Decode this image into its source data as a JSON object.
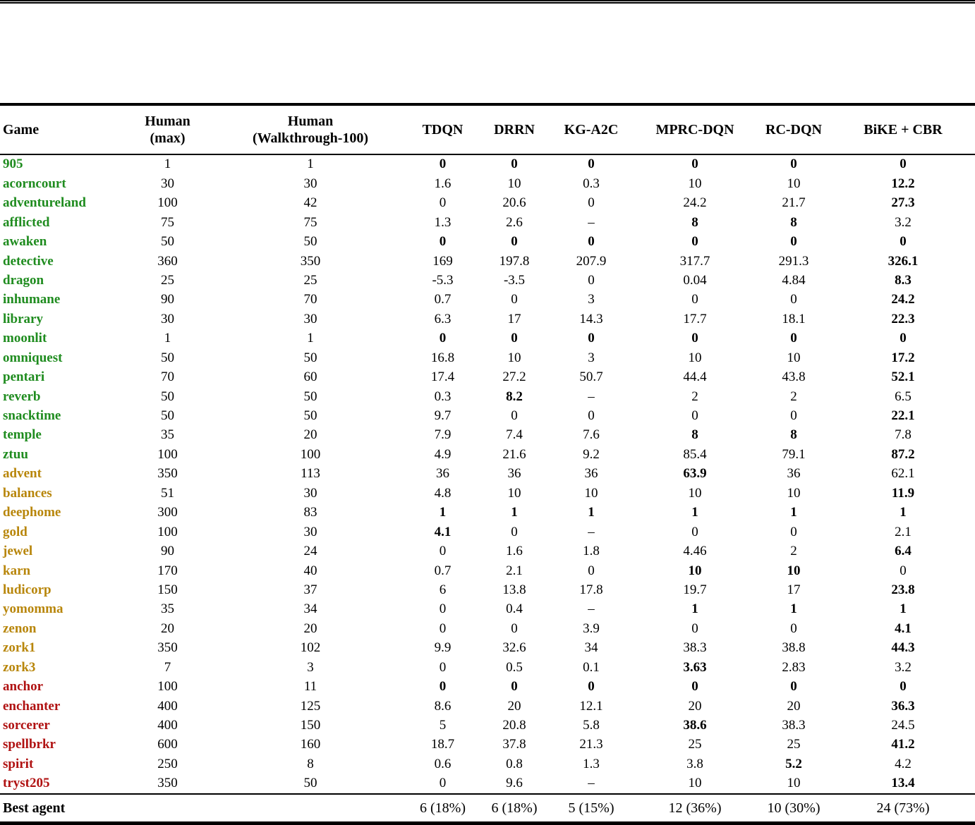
{
  "colors": {
    "group_easy": "#1f8c1f",
    "group_medium": "#b8860b",
    "group_hard": "#b01212"
  },
  "table": {
    "header": {
      "game": "Game",
      "human_max_line1": "Human",
      "human_max_line2": "(max)",
      "human_walkthrough_line1": "Human",
      "human_walkthrough_line2": "(Walkthrough-100)",
      "agents": [
        "TDQN",
        "DRRN",
        "KG-A2C",
        "MPRC-DQN",
        "RC-DQN",
        "BiKE + CBR"
      ]
    },
    "rows": [
      {
        "game": "905",
        "group": "easy",
        "values": [
          "1",
          "1",
          "0",
          "0",
          "0",
          "0",
          "0",
          "0"
        ],
        "bold": [
          false,
          false,
          true,
          true,
          true,
          true,
          true,
          true
        ]
      },
      {
        "game": "acorncourt",
        "group": "easy",
        "values": [
          "30",
          "30",
          "1.6",
          "10",
          "0.3",
          "10",
          "10",
          "12.2"
        ],
        "bold": [
          false,
          false,
          false,
          false,
          false,
          false,
          false,
          true
        ]
      },
      {
        "game": "adventureland",
        "group": "easy",
        "values": [
          "100",
          "42",
          "0",
          "20.6",
          "0",
          "24.2",
          "21.7",
          "27.3"
        ],
        "bold": [
          false,
          false,
          false,
          false,
          false,
          false,
          false,
          true
        ]
      },
      {
        "game": "afflicted",
        "group": "easy",
        "values": [
          "75",
          "75",
          "1.3",
          "2.6",
          "–",
          "8",
          "8",
          "3.2"
        ],
        "bold": [
          false,
          false,
          false,
          false,
          false,
          true,
          true,
          false
        ]
      },
      {
        "game": "awaken",
        "group": "easy",
        "values": [
          "50",
          "50",
          "0",
          "0",
          "0",
          "0",
          "0",
          "0"
        ],
        "bold": [
          false,
          false,
          true,
          true,
          true,
          true,
          true,
          true
        ]
      },
      {
        "game": "detective",
        "group": "easy",
        "values": [
          "360",
          "350",
          "169",
          "197.8",
          "207.9",
          "317.7",
          "291.3",
          "326.1"
        ],
        "bold": [
          false,
          false,
          false,
          false,
          false,
          false,
          false,
          true
        ]
      },
      {
        "game": "dragon",
        "group": "easy",
        "values": [
          "25",
          "25",
          "-5.3",
          "-3.5",
          "0",
          "0.04",
          "4.84",
          "8.3"
        ],
        "bold": [
          false,
          false,
          false,
          false,
          false,
          false,
          false,
          true
        ]
      },
      {
        "game": "inhumane",
        "group": "easy",
        "values": [
          "90",
          "70",
          "0.7",
          "0",
          "3",
          "0",
          "0",
          "24.2"
        ],
        "bold": [
          false,
          false,
          false,
          false,
          false,
          false,
          false,
          true
        ]
      },
      {
        "game": "library",
        "group": "easy",
        "values": [
          "30",
          "30",
          "6.3",
          "17",
          "14.3",
          "17.7",
          "18.1",
          "22.3"
        ],
        "bold": [
          false,
          false,
          false,
          false,
          false,
          false,
          false,
          true
        ]
      },
      {
        "game": "moonlit",
        "group": "easy",
        "values": [
          "1",
          "1",
          "0",
          "0",
          "0",
          "0",
          "0",
          "0"
        ],
        "bold": [
          false,
          false,
          true,
          true,
          true,
          true,
          true,
          true
        ]
      },
      {
        "game": "omniquest",
        "group": "easy",
        "values": [
          "50",
          "50",
          "16.8",
          "10",
          "3",
          "10",
          "10",
          "17.2"
        ],
        "bold": [
          false,
          false,
          false,
          false,
          false,
          false,
          false,
          true
        ]
      },
      {
        "game": "pentari",
        "group": "easy",
        "values": [
          "70",
          "60",
          "17.4",
          "27.2",
          "50.7",
          "44.4",
          "43.8",
          "52.1"
        ],
        "bold": [
          false,
          false,
          false,
          false,
          false,
          false,
          false,
          true
        ]
      },
      {
        "game": "reverb",
        "group": "easy",
        "values": [
          "50",
          "50",
          "0.3",
          "8.2",
          "–",
          "2",
          "2",
          "6.5"
        ],
        "bold": [
          false,
          false,
          false,
          true,
          false,
          false,
          false,
          false
        ]
      },
      {
        "game": "snacktime",
        "group": "easy",
        "values": [
          "50",
          "50",
          "9.7",
          "0",
          "0",
          "0",
          "0",
          "22.1"
        ],
        "bold": [
          false,
          false,
          false,
          false,
          false,
          false,
          false,
          true
        ]
      },
      {
        "game": "temple",
        "group": "easy",
        "values": [
          "35",
          "20",
          "7.9",
          "7.4",
          "7.6",
          "8",
          "8",
          "7.8"
        ],
        "bold": [
          false,
          false,
          false,
          false,
          false,
          true,
          true,
          false
        ]
      },
      {
        "game": "ztuu",
        "group": "easy",
        "values": [
          "100",
          "100",
          "4.9",
          "21.6",
          "9.2",
          "85.4",
          "79.1",
          "87.2"
        ],
        "bold": [
          false,
          false,
          false,
          false,
          false,
          false,
          false,
          true
        ]
      },
      {
        "game": "advent",
        "group": "medium",
        "values": [
          "350",
          "113",
          "36",
          "36",
          "36",
          "63.9",
          "36",
          "62.1"
        ],
        "bold": [
          false,
          false,
          false,
          false,
          false,
          true,
          false,
          false
        ]
      },
      {
        "game": "balances",
        "group": "medium",
        "values": [
          "51",
          "30",
          "4.8",
          "10",
          "10",
          "10",
          "10",
          "11.9"
        ],
        "bold": [
          false,
          false,
          false,
          false,
          false,
          false,
          false,
          true
        ]
      },
      {
        "game": "deephome",
        "group": "medium",
        "values": [
          "300",
          "83",
          "1",
          "1",
          "1",
          "1",
          "1",
          "1"
        ],
        "bold": [
          false,
          false,
          true,
          true,
          true,
          true,
          true,
          true
        ]
      },
      {
        "game": "gold",
        "group": "medium",
        "values": [
          "100",
          "30",
          "4.1",
          "0",
          "–",
          "0",
          "0",
          "2.1"
        ],
        "bold": [
          false,
          false,
          true,
          false,
          false,
          false,
          false,
          false
        ]
      },
      {
        "game": "jewel",
        "group": "medium",
        "values": [
          "90",
          "24",
          "0",
          "1.6",
          "1.8",
          "4.46",
          "2",
          "6.4"
        ],
        "bold": [
          false,
          false,
          false,
          false,
          false,
          false,
          false,
          true
        ]
      },
      {
        "game": "karn",
        "group": "medium",
        "values": [
          "170",
          "40",
          "0.7",
          "2.1",
          "0",
          "10",
          "10",
          "0"
        ],
        "bold": [
          false,
          false,
          false,
          false,
          false,
          true,
          true,
          false
        ]
      },
      {
        "game": "ludicorp",
        "group": "medium",
        "values": [
          "150",
          "37",
          "6",
          "13.8",
          "17.8",
          "19.7",
          "17",
          "23.8"
        ],
        "bold": [
          false,
          false,
          false,
          false,
          false,
          false,
          false,
          true
        ]
      },
      {
        "game": "yomomma",
        "group": "medium",
        "values": [
          "35",
          "34",
          "0",
          "0.4",
          "–",
          "1",
          "1",
          "1"
        ],
        "bold": [
          false,
          false,
          false,
          false,
          false,
          true,
          true,
          true
        ]
      },
      {
        "game": "zenon",
        "group": "medium",
        "values": [
          "20",
          "20",
          "0",
          "0",
          "3.9",
          "0",
          "0",
          "4.1"
        ],
        "bold": [
          false,
          false,
          false,
          false,
          false,
          false,
          false,
          true
        ]
      },
      {
        "game": "zork1",
        "group": "medium",
        "values": [
          "350",
          "102",
          "9.9",
          "32.6",
          "34",
          "38.3",
          "38.8",
          "44.3"
        ],
        "bold": [
          false,
          false,
          false,
          false,
          false,
          false,
          false,
          true
        ]
      },
      {
        "game": "zork3",
        "group": "medium",
        "values": [
          "7",
          "3",
          "0",
          "0.5",
          "0.1",
          "3.63",
          "2.83",
          "3.2"
        ],
        "bold": [
          false,
          false,
          false,
          false,
          false,
          true,
          false,
          false
        ]
      },
      {
        "game": "anchor",
        "group": "hard",
        "values": [
          "100",
          "11",
          "0",
          "0",
          "0",
          "0",
          "0",
          "0"
        ],
        "bold": [
          false,
          false,
          true,
          true,
          true,
          true,
          true,
          true
        ]
      },
      {
        "game": "enchanter",
        "group": "hard",
        "values": [
          "400",
          "125",
          "8.6",
          "20",
          "12.1",
          "20",
          "20",
          "36.3"
        ],
        "bold": [
          false,
          false,
          false,
          false,
          false,
          false,
          false,
          true
        ]
      },
      {
        "game": "sorcerer",
        "group": "hard",
        "values": [
          "400",
          "150",
          "5",
          "20.8",
          "5.8",
          "38.6",
          "38.3",
          "24.5"
        ],
        "bold": [
          false,
          false,
          false,
          false,
          false,
          true,
          false,
          false
        ]
      },
      {
        "game": "spellbrkr",
        "group": "hard",
        "values": [
          "600",
          "160",
          "18.7",
          "37.8",
          "21.3",
          "25",
          "25",
          "41.2"
        ],
        "bold": [
          false,
          false,
          false,
          false,
          false,
          false,
          false,
          true
        ]
      },
      {
        "game": "spirit",
        "group": "hard",
        "values": [
          "250",
          "8",
          "0.6",
          "0.8",
          "1.3",
          "3.8",
          "5.2",
          "4.2"
        ],
        "bold": [
          false,
          false,
          false,
          false,
          false,
          false,
          true,
          false
        ]
      },
      {
        "game": "tryst205",
        "group": "hard",
        "values": [
          "350",
          "50",
          "0",
          "9.6",
          "–",
          "10",
          "10",
          "13.4"
        ],
        "bold": [
          false,
          false,
          false,
          false,
          false,
          false,
          false,
          true
        ]
      }
    ],
    "footer": {
      "label": "Best agent",
      "values": [
        "",
        "",
        "6 (18%)",
        "6 (18%)",
        "5 (15%)",
        "12 (36%)",
        "10 (30%)",
        "24 (73%)"
      ]
    }
  }
}
